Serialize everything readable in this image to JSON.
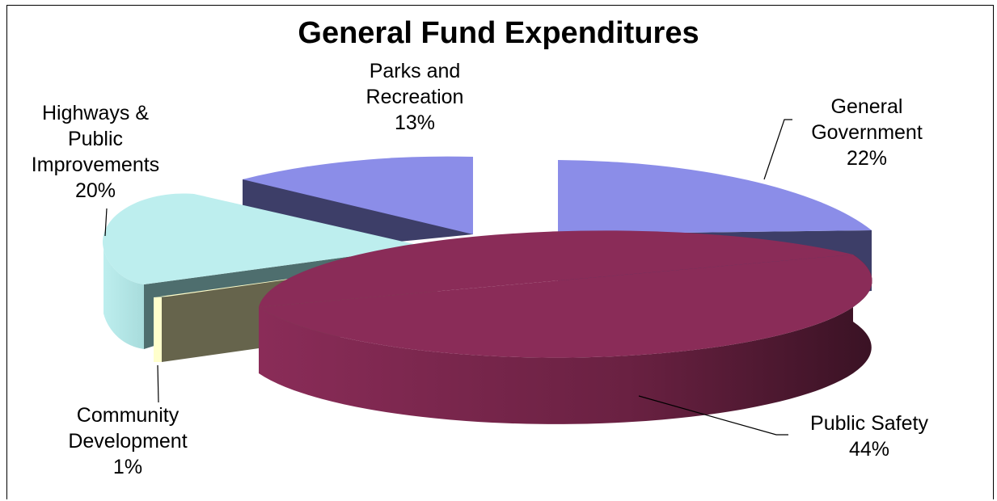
{
  "chart_data": {
    "type": "pie",
    "title": "General Fund Expenditures",
    "slices": [
      {
        "label": [
          "General",
          "Government"
        ],
        "value": 22,
        "value_label": "22%",
        "color": "#8b8de8",
        "side": "#3d3e68"
      },
      {
        "label": [
          "Public Safety"
        ],
        "value": 44,
        "value_label": "44%",
        "color": "#8a2c58",
        "side": "#6e2246"
      },
      {
        "label": [
          "Community",
          "Development"
        ],
        "value": 1,
        "value_label": "1%",
        "color": "#ffffcc",
        "side": "#c8c8a0"
      },
      {
        "label": [
          "Highways &",
          "Public",
          "Improvements"
        ],
        "value": 20,
        "value_label": "20%",
        "color": "#bdeeee",
        "side": "#9fd0d0"
      },
      {
        "label": [
          "Parks and",
          "Recreation"
        ],
        "value": 13,
        "value_label": "13%",
        "color": "#8b8de8",
        "side": "#3d3e68"
      }
    ]
  }
}
